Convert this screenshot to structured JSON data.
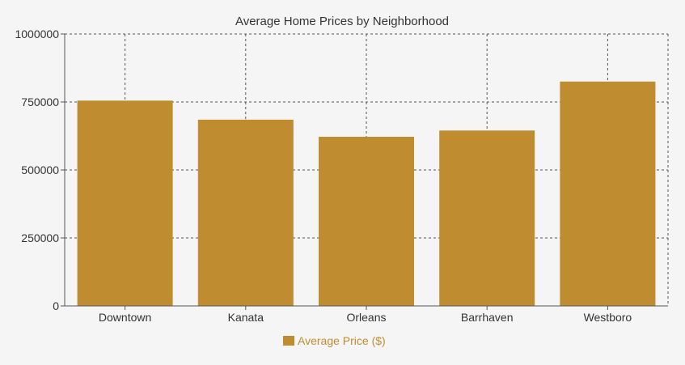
{
  "colors": {
    "background": "#f5f5f5",
    "bar": "#bf8d30",
    "grid": "#555555",
    "axis": "#555555",
    "text": "#333333"
  },
  "chart_data": {
    "type": "bar",
    "title": "Average Home Prices by Neighborhood",
    "xlabel": "",
    "ylabel": "",
    "categories": [
      "Downtown",
      "Kanata",
      "Orleans",
      "Barrhaven",
      "Westboro"
    ],
    "series": [
      {
        "name": "Average Price ($)",
        "values": [
          755000,
          685000,
          622000,
          645000,
          825000
        ]
      }
    ],
    "ylim": [
      0,
      1000000
    ],
    "yticks": [
      0,
      250000,
      500000,
      750000,
      1000000
    ],
    "ytick_labels": [
      "0",
      "250000",
      "500000",
      "750000",
      "1000000"
    ],
    "grid": true,
    "grid_style": "dashed",
    "legend_position": "bottom-center"
  }
}
